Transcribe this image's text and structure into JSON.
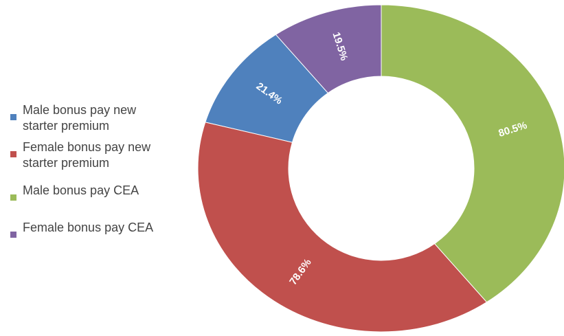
{
  "chart_data": {
    "type": "donut",
    "categories": [
      [
        "Male bonus pay new",
        "starter premium"
      ],
      [
        "Female bonus pay new",
        "starter premium"
      ],
      [
        "Male bonus pay CEA"
      ],
      [
        "Female bonus pay CEA"
      ]
    ],
    "values": [
      21.4,
      78.6,
      80.5,
      19.5
    ],
    "value_labels": [
      "21.4%",
      "78.6%",
      "80.5%",
      "19.5%"
    ],
    "colors": [
      "#4f81bd",
      "#c0504d",
      "#9bbb59",
      "#8064a2"
    ]
  }
}
